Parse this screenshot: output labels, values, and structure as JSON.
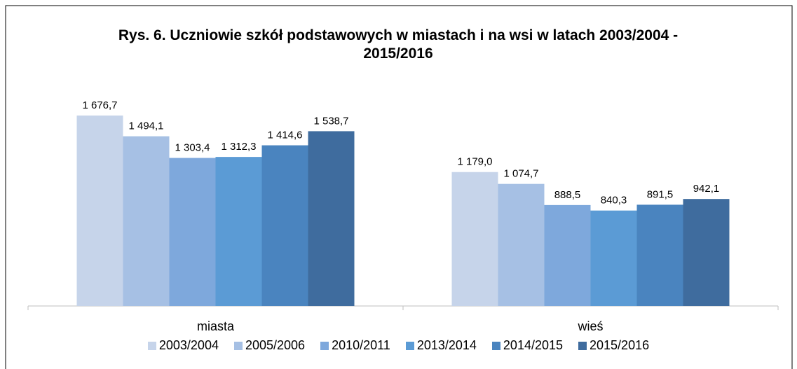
{
  "chart_data": {
    "type": "bar",
    "title": "Rys. 6. Uczniowie szkół podstawowych w miastach i na wsi w latach 2003/2004 - 2015/2016",
    "categories": [
      "miasta",
      "wieś"
    ],
    "series": [
      {
        "name": "2003/2004",
        "color": "#c6d4ea",
        "values": [
          1676.7,
          1179.0
        ],
        "value_labels": [
          "1 676,7",
          "1 179,0"
        ]
      },
      {
        "name": "2005/2006",
        "color": "#a6c0e4",
        "values": [
          1494.1,
          1074.7
        ],
        "value_labels": [
          "1 494,1",
          "1 074,7"
        ]
      },
      {
        "name": "2010/2011",
        "color": "#7ea8dc",
        "values": [
          1303.4,
          888.5
        ],
        "value_labels": [
          "1 303,4",
          "888,5"
        ]
      },
      {
        "name": "2013/2014",
        "color": "#5b9bd5",
        "values": [
          1312.3,
          840.3
        ],
        "value_labels": [
          "1 312,3",
          "840,3"
        ]
      },
      {
        "name": "2014/2015",
        "color": "#4a84bf",
        "values": [
          1414.6,
          891.5
        ],
        "value_labels": [
          "1 414,6",
          "891,5"
        ]
      },
      {
        "name": "2015/2016",
        "color": "#3f6c9e",
        "values": [
          1538.7,
          942.1
        ],
        "value_labels": [
          "1 538,7",
          "942,1"
        ]
      }
    ],
    "ylim": [
      0,
      1800
    ],
    "legend": "bottom"
  }
}
